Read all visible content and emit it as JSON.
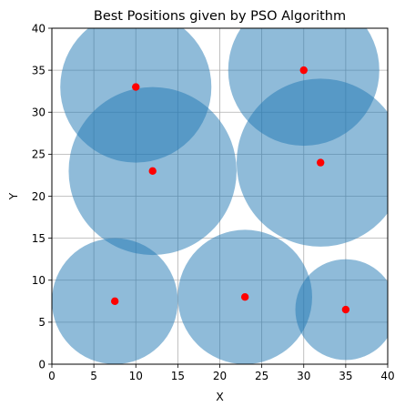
{
  "chart_data": {
    "type": "scatter",
    "title": "Best Positions given by PSO Algorithm",
    "xlabel": "X",
    "ylabel": "Y",
    "xlim": [
      0,
      40
    ],
    "ylim": [
      0,
      40
    ],
    "xticks": [
      "0",
      "5",
      "10",
      "15",
      "20",
      "25",
      "30",
      "35",
      "40"
    ],
    "yticks": [
      "0",
      "5",
      "10",
      "15",
      "20",
      "25",
      "30",
      "35",
      "40"
    ],
    "grid": true,
    "points": [
      {
        "x": 10,
        "y": 33,
        "r": 9
      },
      {
        "x": 30,
        "y": 35,
        "r": 9
      },
      {
        "x": 12,
        "y": 23,
        "r": 10
      },
      {
        "x": 32,
        "y": 24,
        "r": 10
      },
      {
        "x": 7.5,
        "y": 7.5,
        "r": 7.5
      },
      {
        "x": 23,
        "y": 8,
        "r": 8
      },
      {
        "x": 35,
        "y": 6.5,
        "r": 6
      }
    ],
    "colors": {
      "circle_fill": "#1f77b4",
      "circle_opacity": 0.5,
      "point": "#ff0000",
      "grid": "#b0b0b0",
      "axis": "#000000"
    }
  }
}
